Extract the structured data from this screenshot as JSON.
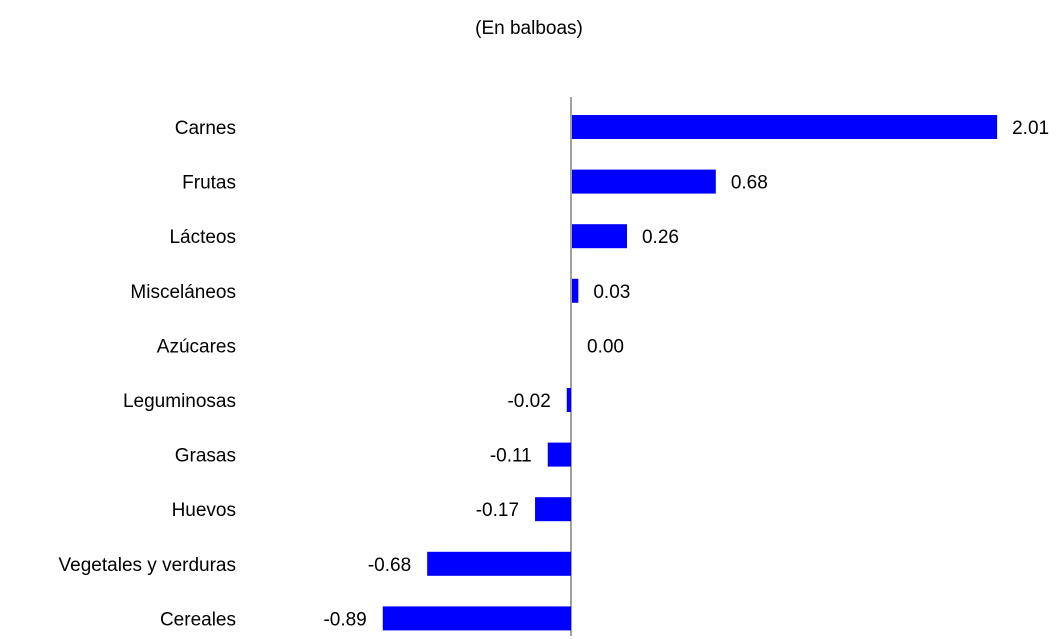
{
  "chart_data": {
    "type": "bar",
    "orientation": "horizontal",
    "title": "",
    "subtitle": "(En balboas)",
    "categories": [
      "Carnes",
      "Frutas",
      "Lácteos",
      "Misceláneos",
      "Azúcares",
      "Leguminosas",
      "Grasas",
      "Huevos",
      "Vegetales y verduras",
      "Cereales"
    ],
    "values": [
      2.01,
      0.68,
      0.26,
      0.03,
      0.0,
      -0.02,
      -0.11,
      -0.17,
      -0.68,
      -0.89
    ],
    "value_labels": [
      "2.01",
      "0.68",
      "0.26",
      "0.03",
      "0.00",
      "-0.02",
      "-0.11",
      "-0.17",
      "-0.68",
      "-0.89"
    ],
    "xlabel": "",
    "ylabel": "",
    "grid": false,
    "legend": "none",
    "bar_color": "#0000ff",
    "axis_color": "#808080"
  }
}
